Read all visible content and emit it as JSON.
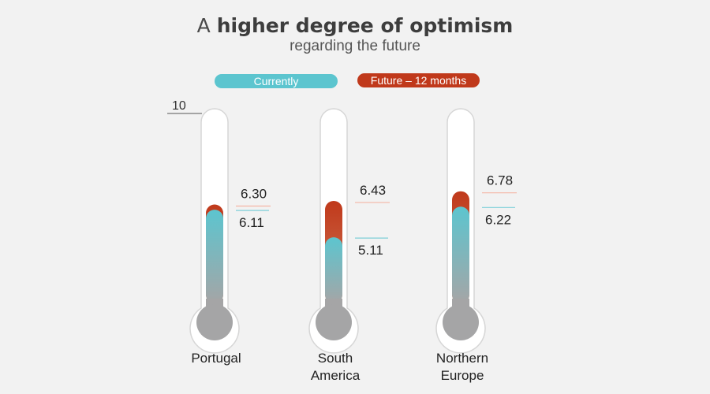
{
  "header": {
    "title_prefix": "A",
    "title_strong": "higher degree of optimism",
    "subtitle": "regarding the future"
  },
  "colors": {
    "current": "#5cc5cf",
    "future": "#c0391b",
    "bulb": "#a5a5a6",
    "glass": "#ffffff",
    "future_line": "#f4b6a6",
    "current_line": "#7fcfd8"
  },
  "chart_data": {
    "type": "bar",
    "title": "A higher degree of optimism",
    "subtitle": "regarding the future",
    "categories": [
      [
        "Portugal"
      ],
      [
        "South",
        "America"
      ],
      [
        "Northern",
        "Europe"
      ]
    ],
    "series": [
      {
        "name": "Currently",
        "values": [
          6.11,
          5.11,
          6.22
        ]
      },
      {
        "name": "Future – 12 months",
        "values": [
          6.3,
          6.43,
          6.78
        ]
      }
    ],
    "value_labels": {
      "Currently": [
        "6.11",
        "5.11",
        "6.22"
      ],
      "Future – 12 months": [
        "6.30",
        "6.43",
        "6.78"
      ]
    },
    "scale_label": "10",
    "ylim": [
      0,
      10
    ],
    "legend": "top-center"
  }
}
